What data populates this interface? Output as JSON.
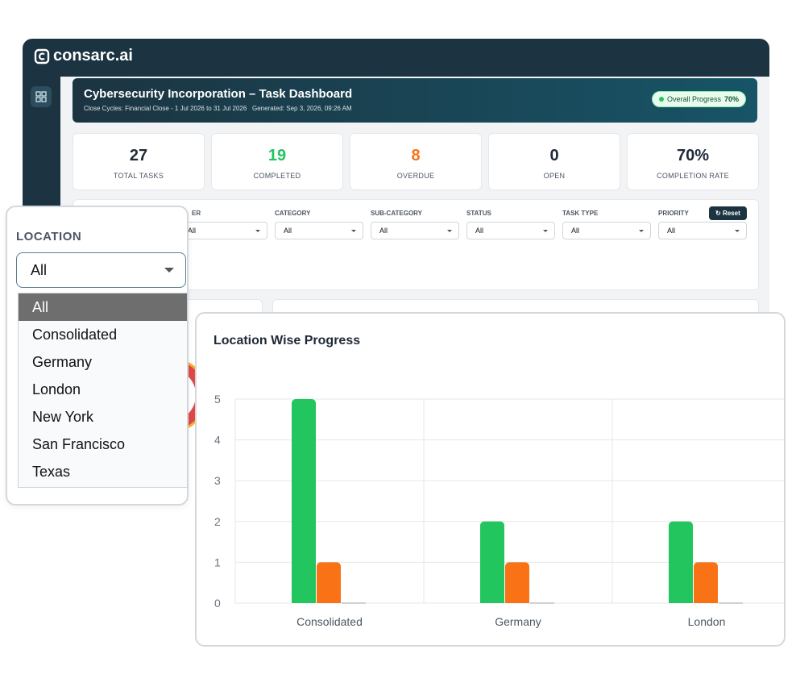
{
  "brand": "consarc.ai",
  "header": {
    "title": "Cybersecurity Incorporation – Task Dashboard",
    "close_cycles": "Close Cycles: Financial Close - 1 Jul 2026 to 31 Jul 2026",
    "generated": "Generated: Sep 3, 2026, 09:26 AM",
    "progress_label": "Overall Progress",
    "progress_value": "70%"
  },
  "kpis": [
    {
      "value": 27,
      "label": "TOTAL TASKS",
      "color": "#1f2937"
    },
    {
      "value": 19,
      "label": "COMPLETED",
      "color": "#22c55e"
    },
    {
      "value": 8,
      "label": "OVERDUE",
      "color": "#f97316"
    },
    {
      "value": 0,
      "label": "OPEN",
      "color": "#1f2937"
    },
    {
      "value": "70%",
      "label": "COMPLETION RATE",
      "color": "#1f2937"
    }
  ],
  "filters": [
    {
      "label": "ER",
      "value": "All"
    },
    {
      "label": "CATEGORY",
      "value": "All"
    },
    {
      "label": "SUB-CATEGORY",
      "value": "All"
    },
    {
      "label": "STATUS",
      "value": "All"
    },
    {
      "label": "TASK TYPE",
      "value": "All"
    },
    {
      "label": "PRIORITY",
      "value": "All"
    }
  ],
  "reset": "Reset",
  "location_dropdown": {
    "label": "LOCATION",
    "selected": "All",
    "options": [
      "All",
      "Consolidated",
      "Germany",
      "London",
      "New York",
      "San Francisco",
      "Texas"
    ]
  },
  "chart": {
    "type": "bar",
    "title": "Location Wise Progress",
    "categories": [
      "Consolidated",
      "Germany",
      "London"
    ],
    "series": [
      {
        "color": "#22c55e",
        "values": [
          5,
          2,
          2
        ]
      },
      {
        "color": "#f97316",
        "values": [
          1,
          1,
          1
        ]
      },
      {
        "color": "#9ca3af",
        "values": [
          0,
          0,
          0
        ]
      }
    ],
    "ylim": [
      0,
      5
    ],
    "yticks": [
      0,
      1,
      2,
      3,
      4,
      5
    ],
    "grid": true
  }
}
